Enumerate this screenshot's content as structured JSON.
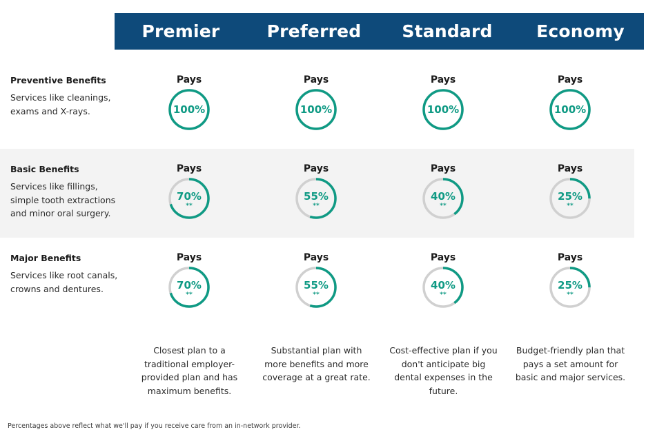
{
  "plans": [
    {
      "name": "Premier",
      "summary": "Closest plan to a traditional employer-provided plan and has maximum benefits."
    },
    {
      "name": "Preferred",
      "summary": "Substantial plan with more benefits and more coverage at a great rate."
    },
    {
      "name": "Standard",
      "summary": "Cost-effective plan if you don't anticipate big dental expenses in the future."
    },
    {
      "name": "Economy",
      "summary": "Budget-friendly plan that pays a set amount for basic and major services."
    }
  ],
  "rows": [
    {
      "title": "Preventive Benefits",
      "description": "Services like cleanings, exams and X-rays.",
      "pays_label": "Pays",
      "values": [
        {
          "percent": 100,
          "label": "100%",
          "note": ""
        },
        {
          "percent": 100,
          "label": "100%",
          "note": ""
        },
        {
          "percent": 100,
          "label": "100%",
          "note": ""
        },
        {
          "percent": 100,
          "label": "100%",
          "note": ""
        }
      ]
    },
    {
      "title": "Basic Benefits",
      "description": "Services like fillings, simple tooth extractions and minor oral surgery.",
      "pays_label": "Pays",
      "values": [
        {
          "percent": 70,
          "label": "70%",
          "note": "**"
        },
        {
          "percent": 55,
          "label": "55%",
          "note": "**"
        },
        {
          "percent": 40,
          "label": "40%",
          "note": "**"
        },
        {
          "percent": 25,
          "label": "25%",
          "note": "**"
        }
      ]
    },
    {
      "title": "Major Benefits",
      "description": "Services like root canals, crowns and dentures.",
      "pays_label": "Pays",
      "values": [
        {
          "percent": 70,
          "label": "70%",
          "note": "**"
        },
        {
          "percent": 55,
          "label": "55%",
          "note": "**"
        },
        {
          "percent": 40,
          "label": "40%",
          "note": "**"
        },
        {
          "percent": 25,
          "label": "25%",
          "note": "**"
        }
      ]
    }
  ],
  "footnote": "Percentages above reflect what we'll pay if you receive care from an in-network provider.",
  "colors": {
    "header_bg": "#0e4a7a",
    "gauge_fill": "#0f9a84",
    "gauge_track": "#d0d0d0",
    "row_shade": "#f3f3f3"
  }
}
